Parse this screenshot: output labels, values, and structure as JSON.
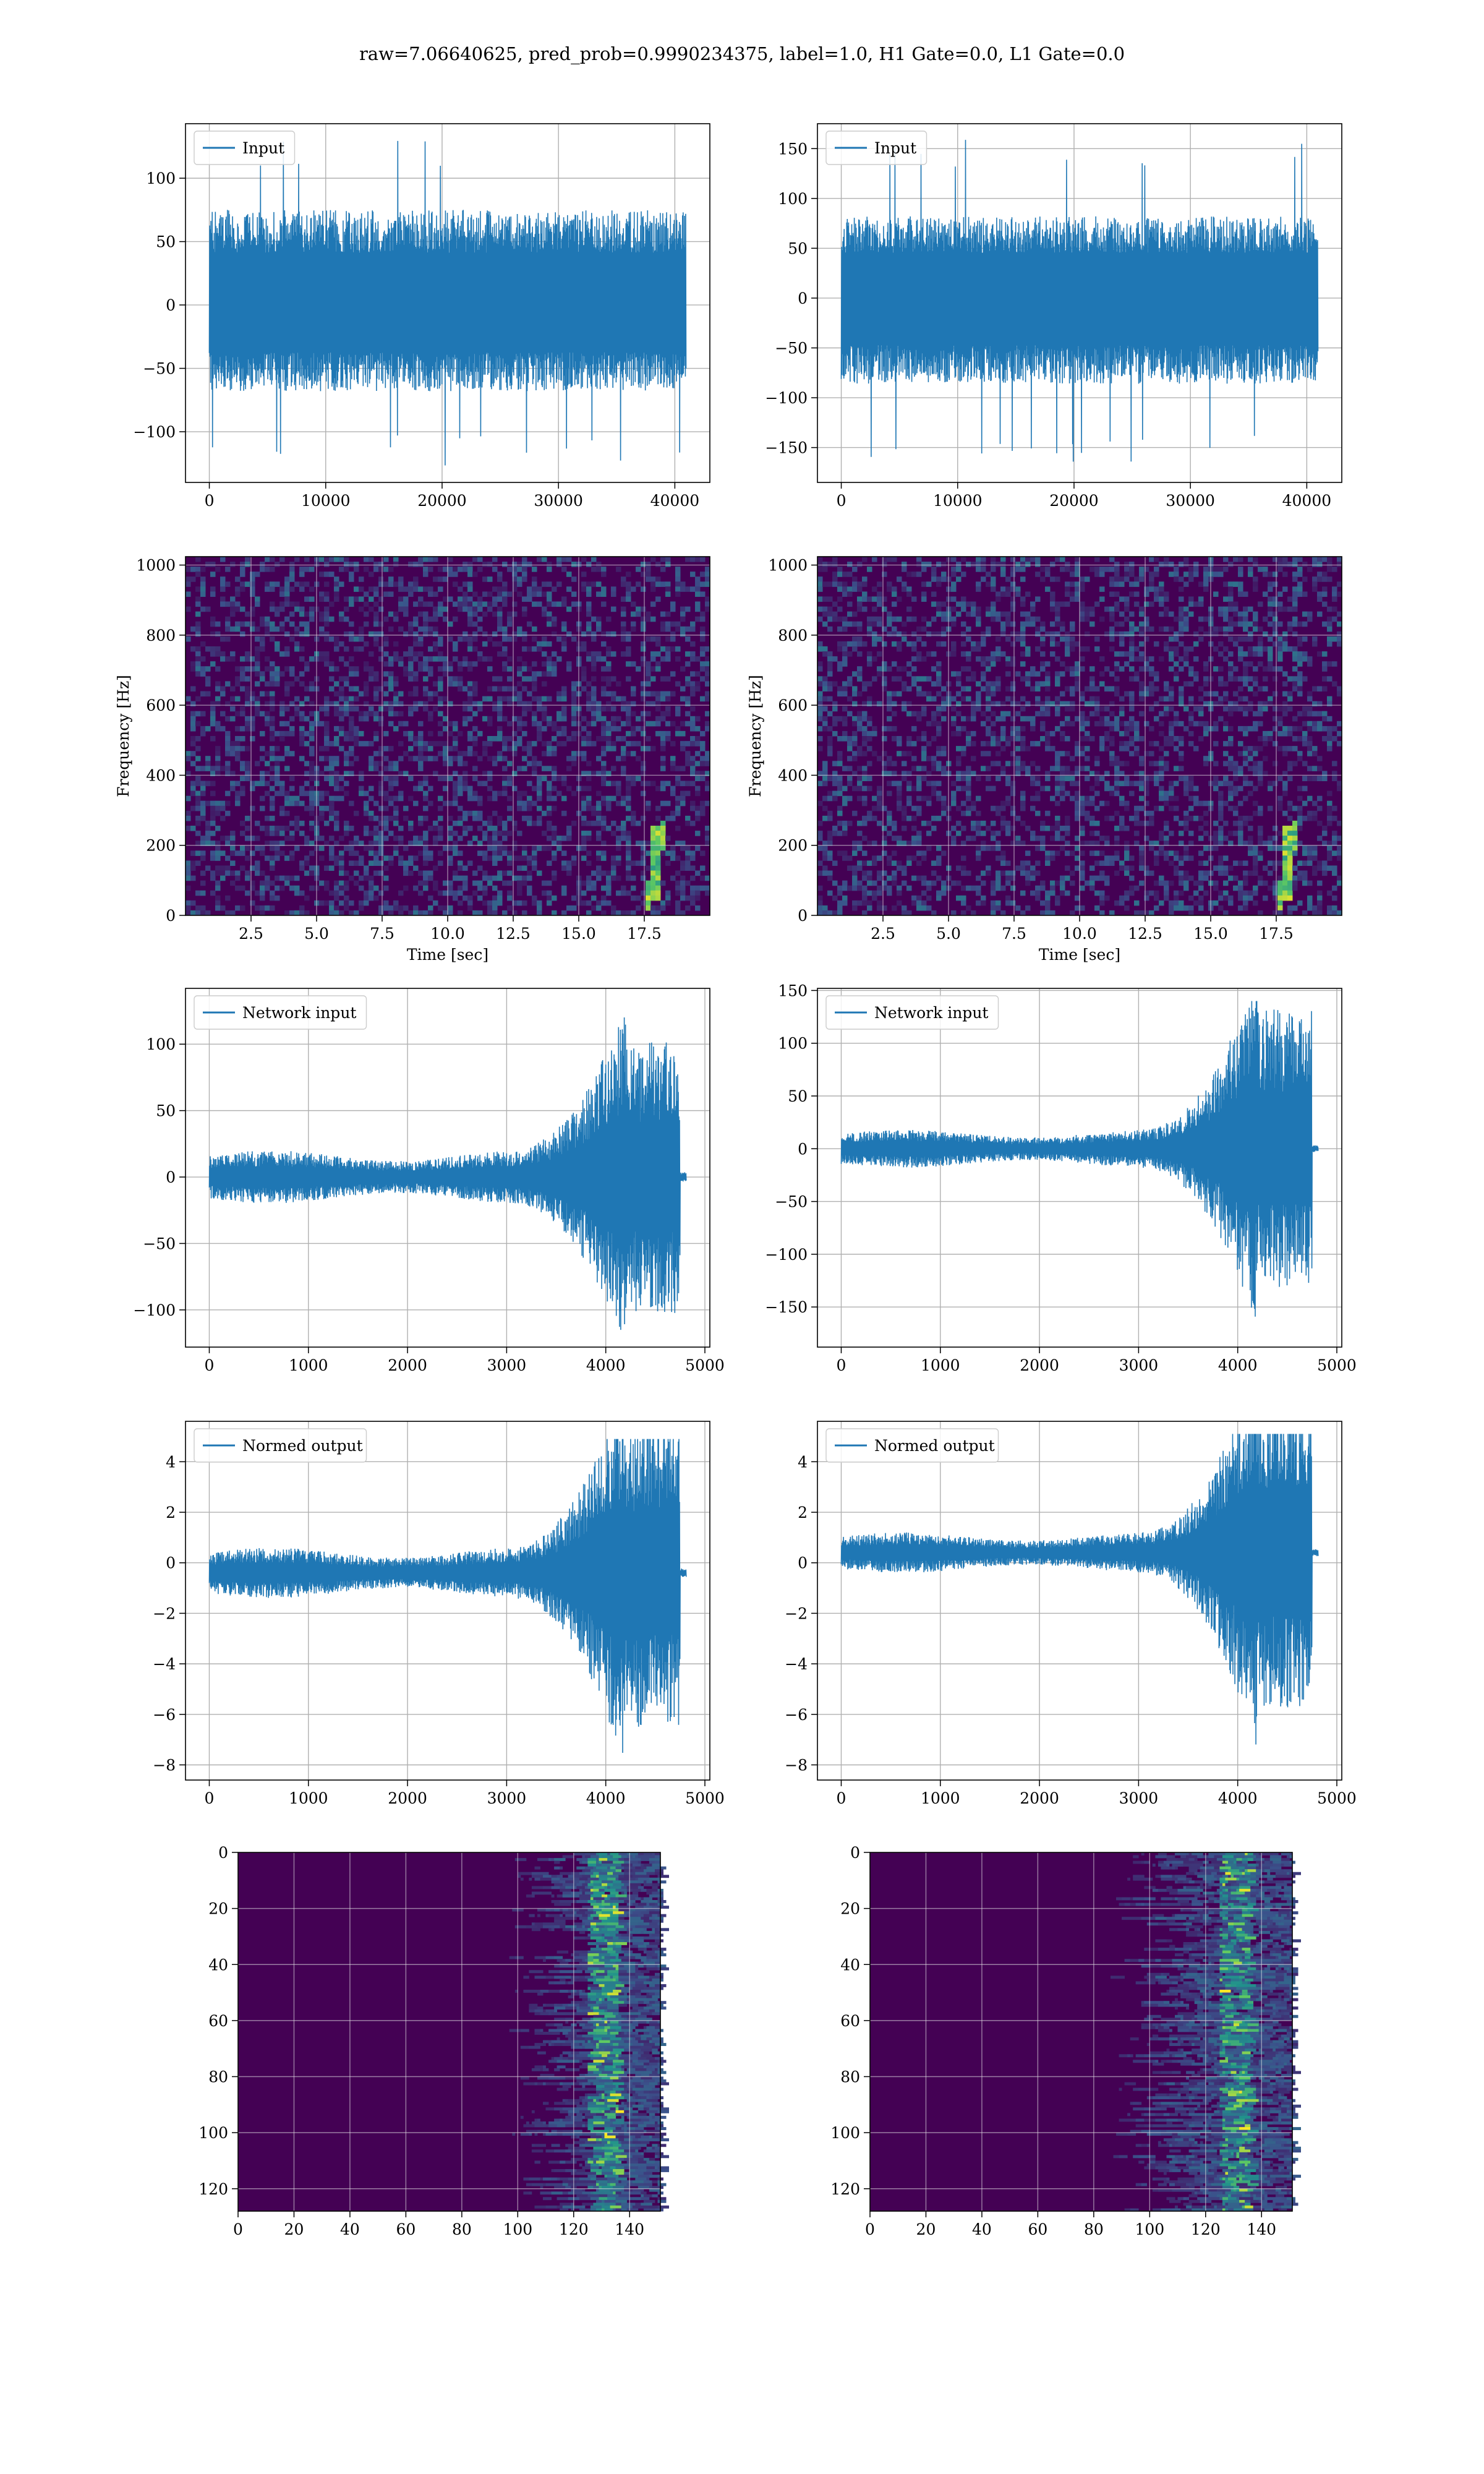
{
  "figure": {
    "title": "raw=7.06640625, pred_prob=0.9990234375, label=1.0, H1 Gate=0.0, L1 Gate=0.0"
  },
  "colors": {
    "line": "#1f77b4",
    "viridis_low": "#440154",
    "viridis_mid": "#21918c",
    "viridis_high": "#fde725",
    "grid": "#b0b0b0"
  },
  "chart_data": [
    {
      "id": "input-h1",
      "type": "line",
      "legend": "Input",
      "legend_loc": "upper-left",
      "grid": true,
      "x_range": [
        0,
        40960
      ],
      "xlim": [
        -2048,
        43008
      ],
      "ylim": [
        -140,
        143
      ],
      "xticks": [
        0,
        10000,
        20000,
        30000,
        40000
      ],
      "yticks": [
        -100,
        -50,
        0,
        50,
        100
      ],
      "envelope": {
        "typical_high": 75,
        "typical_low": -68,
        "peak_max": 136,
        "peak_min": -127
      }
    },
    {
      "id": "input-l1",
      "type": "line",
      "legend": "Input",
      "legend_loc": "upper-left",
      "grid": true,
      "x_range": [
        0,
        40960
      ],
      "xlim": [
        -2048,
        43008
      ],
      "ylim": [
        -185,
        175
      ],
      "xticks": [
        0,
        10000,
        20000,
        30000,
        40000
      ],
      "yticks": [
        -150,
        -100,
        -50,
        0,
        50,
        100,
        150
      ],
      "envelope": {
        "typical_high": 82,
        "typical_low": -86,
        "peak_max": 160,
        "peak_min": -168
      }
    },
    {
      "id": "spec-h1",
      "type": "heatmap",
      "xlabel": "Time [sec]",
      "ylabel": "Frequency [Hz]",
      "grid": true,
      "xlim": [
        0,
        20
      ],
      "ylim": [
        0,
        1024
      ],
      "xticks": [
        2.5,
        5.0,
        7.5,
        10.0,
        12.5,
        15.0,
        17.5
      ],
      "xtick_labels": [
        "2.5",
        "5.0",
        "7.5",
        "10.0",
        "12.5",
        "15.0",
        "17.5"
      ],
      "yticks": [
        0,
        200,
        400,
        600,
        800,
        1000
      ],
      "chirp": {
        "t_start": 17.6,
        "t_end": 18.3,
        "f_start": 40,
        "f_end": 260
      }
    },
    {
      "id": "spec-l1",
      "type": "heatmap",
      "xlabel": "Time [sec]",
      "ylabel": "Frequency [Hz]",
      "grid": true,
      "xlim": [
        0,
        20
      ],
      "ylim": [
        0,
        1024
      ],
      "xticks": [
        2.5,
        5.0,
        7.5,
        10.0,
        12.5,
        15.0,
        17.5
      ],
      "xtick_labels": [
        "2.5",
        "5.0",
        "7.5",
        "10.0",
        "12.5",
        "15.0",
        "17.5"
      ],
      "yticks": [
        0,
        200,
        400,
        600,
        800,
        1000
      ],
      "chirp": {
        "t_start": 17.6,
        "t_end": 18.3,
        "f_start": 40,
        "f_end": 260
      }
    },
    {
      "id": "network-h1",
      "type": "line",
      "legend": "Network input",
      "legend_loc": "upper-left",
      "grid": true,
      "x_range": [
        0,
        4812
      ],
      "xlim": [
        -240,
        5050
      ],
      "ylim": [
        -128,
        142
      ],
      "xticks": [
        0,
        1000,
        2000,
        3000,
        4000,
        5000
      ],
      "yticks": [
        -100,
        -50,
        0,
        50,
        100
      ],
      "envelope": {
        "base": 20,
        "rise_start": 3000,
        "peak_t": 4200,
        "cut_t": 4750,
        "peak_max": 130,
        "peak_min": -115,
        "offset": 0
      }
    },
    {
      "id": "network-l1",
      "type": "line",
      "legend": "Network input",
      "legend_loc": "upper-left",
      "grid": true,
      "x_range": [
        0,
        4812
      ],
      "xlim": [
        -240,
        5050
      ],
      "ylim": [
        -188,
        152
      ],
      "xticks": [
        0,
        1000,
        2000,
        3000,
        4000,
        5000
      ],
      "yticks": [
        -150,
        -100,
        -50,
        0,
        50,
        100,
        150
      ],
      "envelope": {
        "base": 18,
        "rise_start": 3000,
        "peak_t": 4200,
        "cut_t": 4750,
        "peak_max": 140,
        "peak_min": -170,
        "offset": 0
      }
    },
    {
      "id": "normed-h1",
      "type": "line",
      "legend": "Normed output",
      "legend_loc": "upper-left",
      "grid": true,
      "x_range": [
        0,
        4812
      ],
      "xlim": [
        -240,
        5050
      ],
      "ylim": [
        -8.6,
        5.6
      ],
      "xticks": [
        0,
        1000,
        2000,
        3000,
        4000,
        5000
      ],
      "yticks": [
        -8,
        -6,
        -4,
        -2,
        0,
        2,
        4
      ],
      "envelope": {
        "base": 1.0,
        "rise_start": 3000,
        "peak_t": 4200,
        "cut_t": 4750,
        "peak_max": 4.9,
        "peak_min": -7.8,
        "offset": -0.4
      }
    },
    {
      "id": "normed-l1",
      "type": "line",
      "legend": "Normed output",
      "legend_loc": "upper-left",
      "grid": true,
      "x_range": [
        0,
        4812
      ],
      "xlim": [
        -240,
        5050
      ],
      "ylim": [
        -8.6,
        5.6
      ],
      "xticks": [
        0,
        1000,
        2000,
        3000,
        4000,
        5000
      ],
      "yticks": [
        -8,
        -6,
        -4,
        -2,
        0,
        2,
        4
      ],
      "envelope": {
        "base": 0.8,
        "rise_start": 3000,
        "peak_t": 4200,
        "cut_t": 4750,
        "peak_max": 5.1,
        "peak_min": -7.9,
        "offset": 0.4
      }
    },
    {
      "id": "feature-h1",
      "type": "heatmap",
      "grid": true,
      "xlim": [
        0,
        151
      ],
      "ylim": [
        128,
        0
      ],
      "xticks": [
        0,
        20,
        40,
        60,
        80,
        100,
        120,
        140
      ],
      "yticks": [
        0,
        20,
        40,
        60,
        80,
        100,
        120
      ],
      "activity": {
        "onset_col": 100,
        "peak_col": 130
      }
    },
    {
      "id": "feature-l1",
      "type": "heatmap",
      "grid": true,
      "xlim": [
        0,
        151
      ],
      "ylim": [
        128,
        0
      ],
      "xticks": [
        0,
        20,
        40,
        60,
        80,
        100,
        120,
        140
      ],
      "yticks": [
        0,
        20,
        40,
        60,
        80,
        100,
        120
      ],
      "activity": {
        "onset_col": 88,
        "peak_col": 130
      }
    }
  ]
}
